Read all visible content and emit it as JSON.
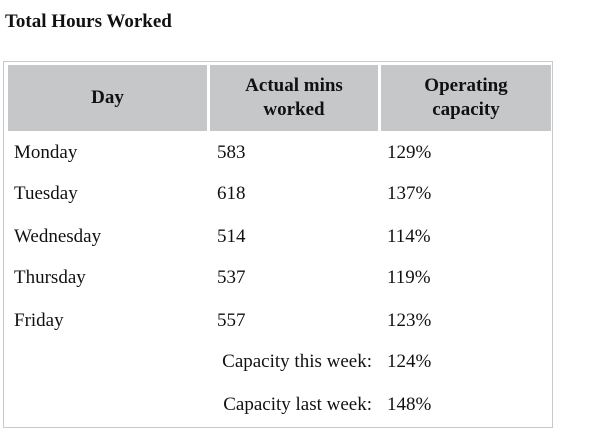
{
  "title": "Total Hours Worked",
  "table": {
    "headers": [
      "Day",
      "Actual mins worked",
      "Operating capacity"
    ],
    "header_lines": {
      "day": [
        "Day"
      ],
      "mins": [
        "Actual mins",
        "worked"
      ],
      "cap": [
        "Operating",
        "capacity"
      ]
    },
    "rows": [
      {
        "day": "Monday",
        "mins": "583",
        "capacity": "129%"
      },
      {
        "day": "Tuesday",
        "mins": "618",
        "capacity": "137%"
      },
      {
        "day": "Wednesday",
        "mins": "514",
        "capacity": "114%"
      },
      {
        "day": "Thursday",
        "mins": "537",
        "capacity": "119%"
      },
      {
        "day": "Friday",
        "mins": "557",
        "capacity": "123%"
      }
    ],
    "summary": [
      {
        "label": "Capacity this week:",
        "value": "124%"
      },
      {
        "label": "Capacity last week:",
        "value": "148%"
      }
    ]
  },
  "colors": {
    "header_bg": "#c6c7c9",
    "border": "#c9c9c9",
    "text": "#111111"
  }
}
